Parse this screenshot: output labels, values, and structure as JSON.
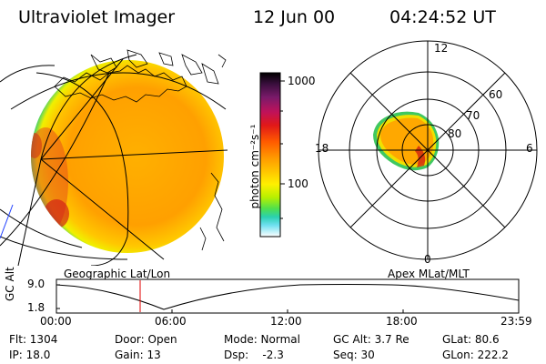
{
  "header": {
    "instrument": "Ultraviolet Imager",
    "date": "12 Jun 00",
    "time": "04:24:52 UT"
  },
  "colorbar": {
    "unit_label": "photon cm⁻²s⁻¹",
    "tick_labels": [
      "1000",
      "100"
    ],
    "stops": [
      "#000000",
      "#3b0f3e",
      "#7a1a6a",
      "#c0125a",
      "#e01818",
      "#ff5a00",
      "#ff9a00",
      "#ffc400",
      "#fff000",
      "#b8f000",
      "#4ee04e",
      "#2ad0b0",
      "#6ee0f0",
      "#ffffff"
    ]
  },
  "polar_plot": {
    "mlt_labels": [
      "12",
      "18",
      "6",
      "0"
    ],
    "lat_labels": [
      "60",
      "70",
      "80"
    ]
  },
  "plot_titles": {
    "geographic": "Geographic Lat/Lon",
    "apex": "Apex MLat/MLT"
  },
  "altitude_plot": {
    "ylabel": "GC Alt",
    "ytick_labels": [
      "9.0",
      "1.8"
    ],
    "xtick_labels": [
      "00:00",
      "06:00",
      "12:00",
      "18:00",
      "23:59"
    ],
    "marker_color": "#e00000"
  },
  "info": {
    "flt": "Flt: 1304",
    "door": "Door: Open",
    "mode": "Mode: Normal",
    "gc_alt": "GC Alt: 3.7 Re",
    "glat": "GLat: 80.6",
    "ip": "IP: 18.0",
    "gain": "Gain: 13",
    "dsp": "Dsp:    -2.3",
    "seq": "Seq: 30",
    "glon": "GLon: 222.2"
  }
}
